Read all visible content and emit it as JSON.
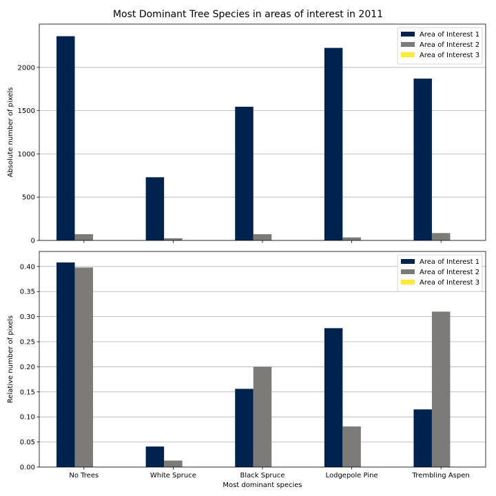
{
  "figure": {
    "title": "Most Dominant Tree Species in areas of interest in 2011"
  },
  "chart_data": [
    {
      "type": "bar",
      "ylabel": "Absolute number of pixels",
      "xlabel": "",
      "ylim": [
        0,
        2500
      ],
      "yticks": [
        0,
        500,
        1000,
        1500,
        2000
      ],
      "ytick_labels": [
        "0",
        "500",
        "1000",
        "1500",
        "2000"
      ],
      "grid": "horizontal",
      "legend_position": "top-right",
      "categories": [
        "No Trees",
        "White Spruce",
        "Black Spruce",
        "Lodgepole Pine",
        "Trembling Aspen"
      ],
      "show_category_labels": false,
      "series": [
        {
          "name": "Area of Interest 1",
          "color": "#00224e",
          "values": [
            2360,
            730,
            1545,
            2225,
            1870
          ]
        },
        {
          "name": "Area of Interest 2",
          "color": "#7c7b78",
          "values": [
            72,
            25,
            72,
            35,
            85
          ]
        },
        {
          "name": "Area of Interest 3",
          "color": "#fee838",
          "values": [
            0,
            0,
            0,
            0,
            0
          ]
        }
      ]
    },
    {
      "type": "bar",
      "ylabel": "Relative number of pixels",
      "xlabel": "Most dominant species",
      "ylim": [
        0,
        0.43
      ],
      "yticks": [
        0,
        0.05,
        0.1,
        0.15,
        0.2,
        0.25,
        0.3,
        0.35,
        0.4
      ],
      "ytick_labels": [
        "0.00",
        "0.05",
        "0.10",
        "0.15",
        "0.20",
        "0.25",
        "0.30",
        "0.35",
        "0.40"
      ],
      "grid": "horizontal",
      "legend_position": "top-right",
      "categories": [
        "No Trees",
        "White Spruce",
        "Black Spruce",
        "Lodgepole Pine",
        "Trembling Aspen"
      ],
      "show_category_labels": true,
      "series": [
        {
          "name": "Area of Interest 1",
          "color": "#00224e",
          "values": [
            0.408,
            0.041,
            0.156,
            0.277,
            0.115
          ]
        },
        {
          "name": "Area of Interest 2",
          "color": "#7c7b78",
          "values": [
            0.398,
            0.013,
            0.2,
            0.081,
            0.31
          ]
        },
        {
          "name": "Area of Interest 3",
          "color": "#fee838",
          "values": [
            0,
            0,
            0,
            0,
            0
          ]
        }
      ]
    }
  ]
}
